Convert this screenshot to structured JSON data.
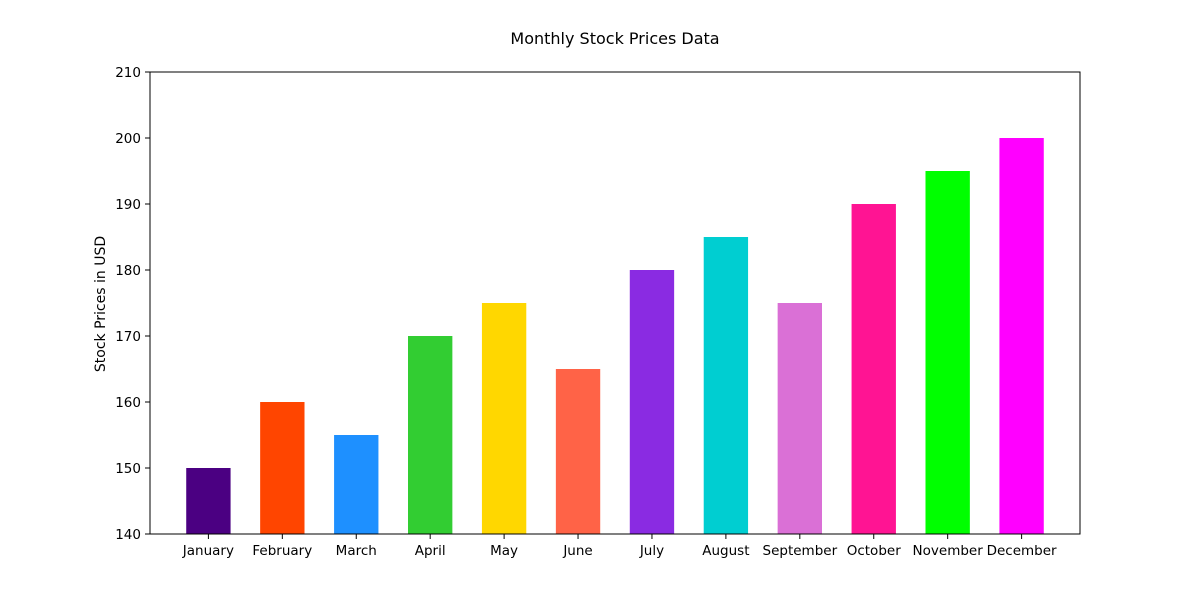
{
  "chart_data": {
    "type": "bar",
    "title": "Monthly Stock Prices Data",
    "xlabel": "",
    "ylabel": "Stock Prices in USD",
    "categories": [
      "January",
      "February",
      "March",
      "April",
      "May",
      "June",
      "July",
      "August",
      "September",
      "October",
      "November",
      "December"
    ],
    "values": [
      150,
      160,
      155,
      170,
      175,
      165,
      180,
      185,
      175,
      190,
      195,
      200
    ],
    "colors": [
      "#4b0082",
      "#ff4500",
      "#1e90ff",
      "#32cd32",
      "#ffd700",
      "#ff6347",
      "#8a2be2",
      "#00ced1",
      "#da70d6",
      "#ff1493",
      "#00ff00",
      "#ff00ff"
    ],
    "ylim": [
      140,
      210
    ],
    "yticks": [
      140,
      150,
      160,
      170,
      180,
      190,
      200,
      210
    ],
    "grid": false,
    "legend": "none"
  }
}
